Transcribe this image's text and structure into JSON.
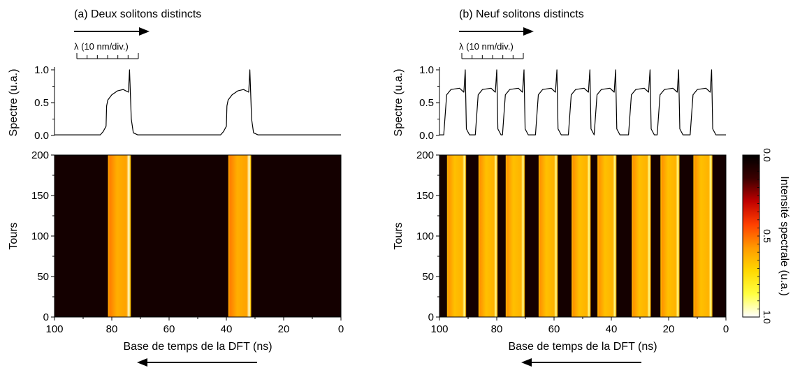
{
  "chart_data": [
    {
      "panel_title": "(a) Deux solitons distincts",
      "scale_label": "λ (10 nm/div.)",
      "top": {
        "type": "line",
        "ylabel": "Spectre (u.a.)",
        "ylim": [
          0,
          1.0
        ],
        "yticks": [
          "0.0",
          "0.5",
          "1.0"
        ],
        "series": [
          {
            "values": [
              [
                100,
                0.01
              ],
              [
                84,
                0.01
              ],
              [
                83,
                0.06
              ],
              [
                82,
                0.14
              ],
              [
                81.8,
                0.45
              ],
              [
                81.4,
                0.54
              ],
              [
                80,
                0.62
              ],
              [
                78,
                0.68
              ],
              [
                76,
                0.7
              ],
              [
                74.2,
                0.66
              ],
              [
                73.8,
                1.0
              ],
              [
                73.2,
                0.25
              ],
              [
                72.5,
                0.04
              ],
              [
                71,
                0.01
              ],
              [
                42,
                0.01
              ],
              [
                41,
                0.06
              ],
              [
                40,
                0.14
              ],
              [
                39.8,
                0.45
              ],
              [
                39.4,
                0.54
              ],
              [
                38,
                0.62
              ],
              [
                36,
                0.68
              ],
              [
                34,
                0.7
              ],
              [
                32.2,
                0.66
              ],
              [
                31.8,
                1.0
              ],
              [
                31.2,
                0.25
              ],
              [
                30.5,
                0.04
              ],
              [
                29,
                0.01
              ],
              [
                0,
                0.01
              ]
            ]
          }
        ]
      },
      "heatmap": {
        "type": "heatmap",
        "xlabel": "Base de temps de la DFT (ns)",
        "ylabel": "Tours",
        "xlim": [
          100,
          0
        ],
        "ylim": [
          0,
          200
        ],
        "xticks": [
          "100",
          "80",
          "60",
          "40",
          "20",
          "0"
        ],
        "yticks": [
          "0",
          "50",
          "100",
          "150",
          "200"
        ],
        "value_range": [
          0.0,
          1.0
        ],
        "stripes": [
          {
            "x_from": 81.5,
            "x_to": 73.2,
            "edge_max": 0.6,
            "plateau": 0.62,
            "spike": 0.97
          },
          {
            "x_from": 39.5,
            "x_to": 31.2,
            "edge_max": 0.6,
            "plateau": 0.62,
            "spike": 0.97
          }
        ]
      },
      "direction_arrows": [
        "top: right",
        "bottom: left"
      ]
    },
    {
      "panel_title": "(b) Neuf solitons distincts",
      "scale_label": "λ (10 nm/div.)",
      "top": {
        "type": "line",
        "ylabel": "Spectre (u.a.)",
        "ylim": [
          0,
          1.0
        ],
        "yticks": [
          "0.0",
          "0.5",
          "1.0"
        ],
        "series": [
          {
            "values": [
              [
                100,
                0.01
              ],
              [
                98.5,
                0.01
              ],
              [
                97.5,
                0.62
              ],
              [
                96,
                0.7
              ],
              [
                93,
                0.72
              ],
              [
                91.5,
                0.66
              ],
              [
                91,
                1.0
              ],
              [
                90.6,
                0.1
              ],
              [
                89.5,
                0.01
              ],
              [
                87.5,
                0.01
              ],
              [
                86.5,
                0.62
              ],
              [
                85,
                0.7
              ],
              [
                82,
                0.72
              ],
              [
                80.5,
                0.66
              ],
              [
                80,
                1.0
              ],
              [
                79.6,
                0.1
              ],
              [
                78.5,
                0.01
              ],
              [
                78,
                0.01
              ],
              [
                77,
                0.62
              ],
              [
                75.5,
                0.7
              ],
              [
                72.5,
                0.72
              ],
              [
                71,
                0.66
              ],
              [
                70.5,
                1.0
              ],
              [
                70.1,
                0.1
              ],
              [
                69,
                0.01
              ],
              [
                66.5,
                0.01
              ],
              [
                65.5,
                0.62
              ],
              [
                64,
                0.7
              ],
              [
                61,
                0.72
              ],
              [
                59.5,
                0.66
              ],
              [
                59,
                1.0
              ],
              [
                58.6,
                0.1
              ],
              [
                57.5,
                0.01
              ],
              [
                55,
                0.01
              ],
              [
                54,
                0.62
              ],
              [
                52.5,
                0.7
              ],
              [
                49.5,
                0.72
              ],
              [
                48,
                0.66
              ],
              [
                47.5,
                1.0
              ],
              [
                47.1,
                0.1
              ],
              [
                46,
                0.01
              ],
              [
                46,
                0.01
              ],
              [
                45,
                0.62
              ],
              [
                43.5,
                0.7
              ],
              [
                40.5,
                0.72
              ],
              [
                39,
                0.66
              ],
              [
                38.5,
                1.0
              ],
              [
                38.1,
                0.1
              ],
              [
                37,
                0.01
              ],
              [
                34,
                0.01
              ],
              [
                33,
                0.62
              ],
              [
                31.5,
                0.7
              ],
              [
                28.5,
                0.72
              ],
              [
                27,
                0.66
              ],
              [
                26.5,
                1.0
              ],
              [
                26.1,
                0.1
              ],
              [
                25,
                0.01
              ],
              [
                24,
                0.01
              ],
              [
                23,
                0.62
              ],
              [
                21.5,
                0.7
              ],
              [
                18.5,
                0.72
              ],
              [
                17,
                0.66
              ],
              [
                16.5,
                1.0
              ],
              [
                16.1,
                0.1
              ],
              [
                15,
                0.01
              ],
              [
                12.5,
                0.01
              ],
              [
                11.5,
                0.62
              ],
              [
                10,
                0.7
              ],
              [
                7,
                0.72
              ],
              [
                5.5,
                0.66
              ],
              [
                5,
                1.0
              ],
              [
                4.6,
                0.1
              ],
              [
                3.5,
                0.01
              ],
              [
                0,
                0.01
              ]
            ]
          }
        ]
      },
      "heatmap": {
        "type": "heatmap",
        "xlabel": "Base de temps de la DFT (ns)",
        "ylabel": "Tours",
        "xlim": [
          100,
          0
        ],
        "ylim": [
          0,
          200
        ],
        "xticks": [
          "100",
          "80",
          "60",
          "40",
          "20",
          "0"
        ],
        "yticks": [
          "0",
          "50",
          "100",
          "150",
          "200"
        ],
        "value_range": [
          0.0,
          1.0
        ],
        "stripes": [
          {
            "x_from": 97.5,
            "x_to": 90.6,
            "edge_max": 0.65,
            "plateau": 0.66,
            "spike": 0.92
          },
          {
            "x_from": 86.5,
            "x_to": 79.6,
            "edge_max": 0.65,
            "plateau": 0.66,
            "spike": 0.92
          },
          {
            "x_from": 77.0,
            "x_to": 70.1,
            "edge_max": 0.65,
            "plateau": 0.66,
            "spike": 0.92
          },
          {
            "x_from": 65.5,
            "x_to": 58.6,
            "edge_max": 0.65,
            "plateau": 0.66,
            "spike": 0.92
          },
          {
            "x_from": 54.0,
            "x_to": 47.1,
            "edge_max": 0.65,
            "plateau": 0.66,
            "spike": 0.92
          },
          {
            "x_from": 45.0,
            "x_to": 38.1,
            "edge_max": 0.65,
            "plateau": 0.66,
            "spike": 0.92
          },
          {
            "x_from": 33.0,
            "x_to": 26.1,
            "edge_max": 0.65,
            "plateau": 0.66,
            "spike": 0.92
          },
          {
            "x_from": 23.0,
            "x_to": 16.1,
            "edge_max": 0.65,
            "plateau": 0.66,
            "spike": 0.92
          },
          {
            "x_from": 11.5,
            "x_to": 4.6,
            "edge_max": 0.65,
            "plateau": 0.66,
            "spike": 0.92
          }
        ]
      },
      "direction_arrows": [
        "top: right",
        "bottom: left"
      ]
    }
  ],
  "colorbar": {
    "label": "Intensité spectrale (u.a.)",
    "ticks": [
      "0.0",
      "0.5",
      "1.0"
    ],
    "range": [
      0.0,
      1.0
    ],
    "colormap": [
      "#000000",
      "#3a0000",
      "#c00000",
      "#ff4000",
      "#ff9a00",
      "#ffd800",
      "#ffff40",
      "#ffffff"
    ]
  }
}
